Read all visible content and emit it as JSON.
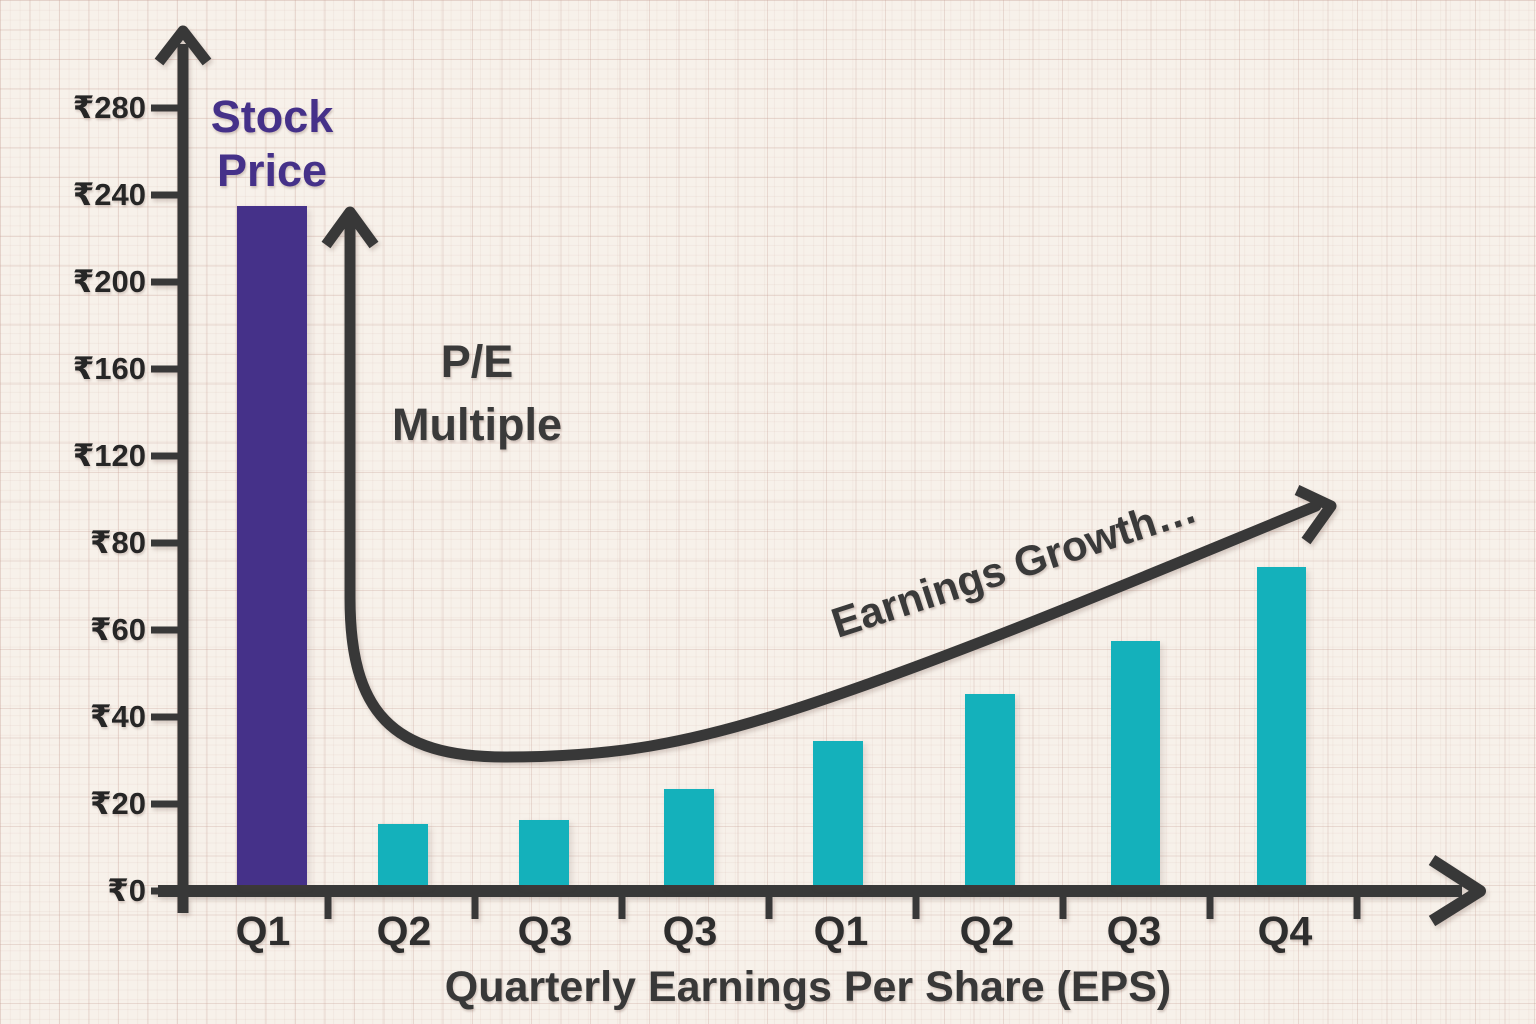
{
  "chart_data": {
    "type": "bar",
    "title": "",
    "xlabel": "Quarterly Earnings Per Share (EPS)",
    "ylabel": "",
    "categories": [
      "Q1",
      "Q2",
      "Q3",
      "Q3",
      "Q1",
      "Q2",
      "Q3",
      "Q4"
    ],
    "series": [
      {
        "name": "Stock Price",
        "color": "#453189",
        "values": [
          232,
          null,
          null,
          null,
          null,
          null,
          null,
          null
        ]
      },
      {
        "name": "Quarterly EPS",
        "color": "#14b1bb",
        "values": [
          null,
          14,
          15,
          22,
          33,
          44,
          56,
          73
        ]
      }
    ],
    "y_axis": {
      "currency_symbol": "₹",
      "tick_labels": [
        "₹0",
        "₹20",
        "₹40",
        "₹60",
        "₹80",
        "₹120",
        "₹160",
        "₹200",
        "₹240",
        "₹280"
      ],
      "note": "ticks equally spaced: ₹20 steps up to ₹80, then ₹40 steps up to ₹280"
    },
    "annotations": {
      "stock_price": "Stock Price",
      "pe_multiple": "P/E Multiple",
      "earnings_growth": "Earnings Growth…"
    },
    "legend": "none",
    "grid": "graph-paper",
    "colors": {
      "stock_price_bar": "#453189",
      "eps_bar": "#14b1bb",
      "axis_and_curve": "#383838",
      "background": "#f7f1ea"
    }
  }
}
